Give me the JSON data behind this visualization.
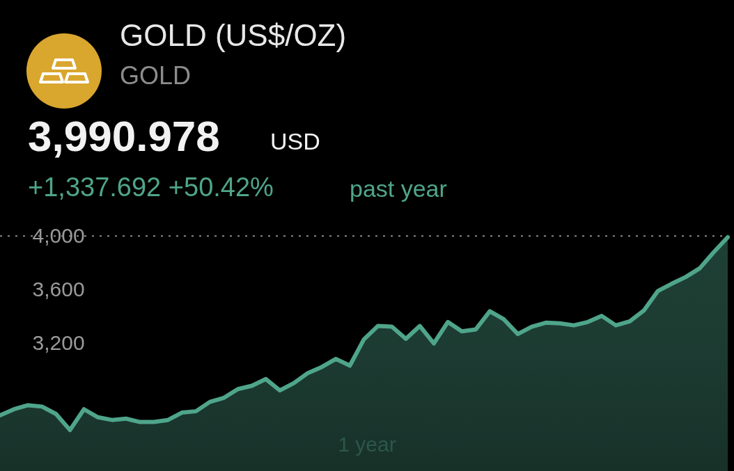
{
  "chart_data": {
    "type": "area",
    "title": "GOLD (US$/OZ)",
    "subtitle": "GOLD",
    "annotations": [
      "3,990.978",
      "USD",
      "+1,337.692 +50.42%",
      "past year",
      "1 year"
    ],
    "categories": [
      null,
      null,
      null,
      null,
      null,
      null,
      null,
      null,
      null,
      null,
      null,
      null,
      null,
      null,
      null,
      null,
      null,
      null,
      null,
      null,
      null,
      null,
      null,
      null,
      null,
      null,
      null,
      null,
      null,
      null,
      null,
      null,
      null,
      null,
      null,
      null,
      null,
      null,
      null,
      null,
      null,
      null,
      null,
      null,
      null,
      null,
      null,
      null,
      null,
      null,
      null,
      null,
      null
    ],
    "series": [
      {
        "color": "#4fa58a",
        "values": [
          2665,
          2710,
          2740,
          2730,
          2675,
          2555,
          2710,
          2650,
          2630,
          2640,
          2615,
          2615,
          2630,
          2685,
          2695,
          2765,
          2795,
          2860,
          2885,
          2935,
          2850,
          2905,
          2980,
          3025,
          3085,
          3035,
          3230,
          3330,
          3325,
          3235,
          3330,
          3200,
          3360,
          3290,
          3305,
          3440,
          3380,
          3270,
          3325,
          3355,
          3350,
          3335,
          3360,
          3405,
          3335,
          3365,
          3445,
          3590,
          3645,
          3695,
          3760,
          3880,
          3991
        ]
      }
    ],
    "ylim": [
      2250,
      4100
    ],
    "yticks": [
      {
        "value": 3200,
        "label": "3,200"
      },
      {
        "value": 3600,
        "label": "3,600"
      },
      {
        "value": 4000,
        "label": "4,000"
      }
    ],
    "grid": false,
    "ref_lines": [
      {
        "axis": "y",
        "value": 4000,
        "line_style": "dotted",
        "color": "#8a8a8a"
      }
    ]
  }
}
